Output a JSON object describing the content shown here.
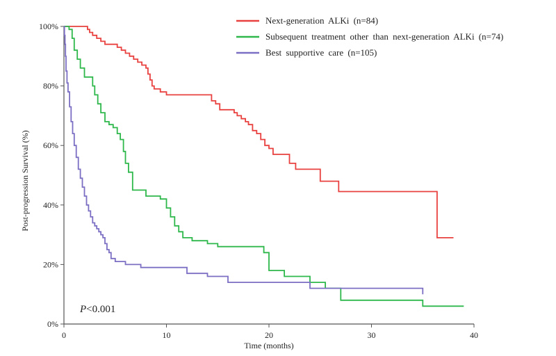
{
  "chart_data": {
    "type": "line",
    "subtype": "kaplan-meier step curve",
    "title": "",
    "xlabel": "Time (months)",
    "ylabel": "Post-progression Survival (%)",
    "xlim": [
      0,
      40
    ],
    "ylim": [
      0,
      100
    ],
    "xticks": [
      0,
      10,
      20,
      30,
      40
    ],
    "yticks": [
      0,
      20,
      40,
      60,
      80,
      100
    ],
    "xtick_labels": [
      "0",
      "10",
      "20",
      "30",
      "40"
    ],
    "ytick_labels": [
      "0%",
      "20%",
      "40%",
      "60%",
      "80%",
      "100%"
    ],
    "legend_position": "top-right",
    "annotation": {
      "italic": "P",
      "text": "<0.001"
    },
    "series": [
      {
        "name": "Next-generation ALKi (n=84)",
        "color": "#e8413f",
        "x": [
          0,
          2,
          2.3,
          2.5,
          2.8,
          3.2,
          3.6,
          4.0,
          5.2,
          5.6,
          6.0,
          6.4,
          6.8,
          7.2,
          7.6,
          8.0,
          8.2,
          8.4,
          8.6,
          8.8,
          9.4,
          10.0,
          14.0,
          14.4,
          14.8,
          15.2,
          16.2,
          16.6,
          16.9,
          17.3,
          17.7,
          18.0,
          18.4,
          18.8,
          19.2,
          19.6,
          20.0,
          20.4,
          21.0,
          22.0,
          22.6,
          25.0,
          26.8,
          36.4,
          38.0
        ],
        "values": [
          100,
          100,
          99,
          98,
          97,
          96,
          95,
          94,
          93,
          92,
          91,
          90,
          89,
          88,
          87,
          86,
          84,
          82,
          80,
          79,
          78,
          77,
          77,
          75,
          74,
          72,
          72,
          71,
          70,
          69,
          68,
          67,
          65,
          64,
          62,
          60,
          59,
          57,
          57,
          54,
          52,
          48,
          44.5,
          29,
          29
        ]
      },
      {
        "name": "Subsequent treatment other than next-generation ALKi (n=74)",
        "color": "#2eb84b",
        "x": [
          0,
          0.5,
          0.8,
          1.0,
          1.3,
          1.6,
          2.0,
          2.8,
          3.0,
          3.3,
          3.6,
          4.0,
          4.4,
          4.8,
          5.2,
          5.5,
          5.8,
          6.0,
          6.3,
          6.7,
          8.0,
          9.0,
          9.4,
          10.0,
          10.4,
          10.8,
          11.2,
          11.6,
          12.5,
          14.0,
          15.0,
          19.0,
          19.5,
          20.0,
          21.5,
          24.0,
          25.5,
          27.0,
          35.0,
          39.0
        ],
        "values": [
          100,
          99,
          96,
          92,
          89,
          86,
          83,
          80,
          77,
          74,
          71,
          68,
          67,
          66,
          64,
          62,
          58,
          54,
          51,
          45,
          43,
          43,
          42,
          39,
          36,
          33,
          31,
          29,
          28,
          27,
          26,
          26,
          24,
          18,
          16,
          14,
          12,
          8,
          6,
          6
        ]
      },
      {
        "name": "Best supportive care (n=105)",
        "color": "#7b6fc4",
        "x": [
          0,
          0.05,
          0.1,
          0.15,
          0.2,
          0.3,
          0.4,
          0.55,
          0.7,
          0.85,
          1.0,
          1.2,
          1.4,
          1.6,
          1.8,
          2.0,
          2.2,
          2.4,
          2.6,
          2.8,
          3.0,
          3.2,
          3.4,
          3.6,
          3.8,
          4.0,
          4.2,
          4.4,
          4.6,
          5.0,
          6.0,
          7.5,
          12.0,
          14.0,
          16.0,
          24.0,
          35.0
        ],
        "values": [
          100,
          97,
          94,
          90,
          85,
          81,
          78,
          73,
          68,
          64,
          60,
          56,
          52,
          49,
          46,
          43,
          40,
          38,
          36,
          34,
          33,
          32,
          31,
          30,
          29,
          27,
          25,
          24,
          22,
          21,
          20,
          19,
          17,
          16,
          14,
          12,
          10
        ]
      }
    ]
  }
}
